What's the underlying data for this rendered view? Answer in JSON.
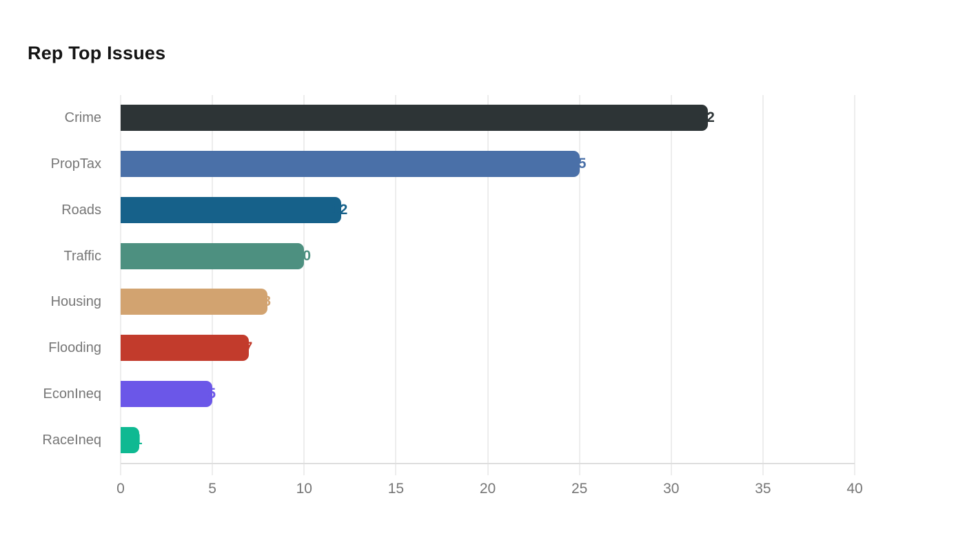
{
  "title": "Rep Top Issues",
  "colors": {
    "background": "#ffffff",
    "title_text": "#141414",
    "axis_label_text": "#767676",
    "gridline": "#ededed",
    "axis_line": "#dedede"
  },
  "chart_data": {
    "type": "bar",
    "orientation": "horizontal",
    "title": "Rep Top Issues",
    "xlabel": "",
    "ylabel": "",
    "categories": [
      "Crime",
      "PropTax",
      "Roads",
      "Traffic",
      "Housing",
      "Flooding",
      "EconIneq",
      "RaceIneq"
    ],
    "values": [
      32,
      25,
      12,
      10,
      8,
      7,
      5,
      1
    ],
    "bar_colors": [
      "#2d3436",
      "#4a70a8",
      "#16618a",
      "#4d9080",
      "#d2a370",
      "#c23b2c",
      "#6b57e8",
      "#0fb992"
    ],
    "value_label_style": "same-color-as-bar, centered on bar end (partially clipped)",
    "xlim": [
      0,
      40
    ],
    "xticks": [
      0,
      5,
      10,
      15,
      20,
      25,
      30,
      35,
      40
    ],
    "grid": true,
    "legend": false
  }
}
